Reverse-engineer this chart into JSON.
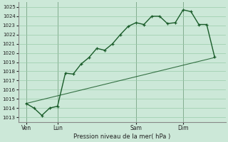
{
  "xlabel": "Pression niveau de la mer( hPa )",
  "ylim": [
    1012.5,
    1025.5
  ],
  "yticks": [
    1013,
    1014,
    1015,
    1016,
    1017,
    1018,
    1019,
    1020,
    1021,
    1022,
    1023,
    1024,
    1025
  ],
  "bg_color": "#cce8d8",
  "grid_color": "#99ccaa",
  "line_color": "#1a5c2a",
  "day_labels": [
    "Ven",
    "Lun",
    "Sam",
    "Dim"
  ],
  "day_positions": [
    0.5,
    2.5,
    7.5,
    10.5
  ],
  "day_vlines": [
    0.5,
    2.5,
    7.5,
    10.5
  ],
  "line1_x": [
    0.5,
    1.0,
    1.5,
    2.0,
    2.5,
    3.0,
    3.5,
    4.0,
    4.5,
    5.0,
    5.5,
    6.0,
    6.5,
    7.0,
    7.5,
    8.0,
    8.5,
    9.0,
    9.5,
    10.0,
    10.5,
    11.0,
    11.5,
    12.0,
    12.5
  ],
  "line1_y": [
    1014.5,
    1014.0,
    1013.2,
    1014.0,
    1014.2,
    1017.8,
    1017.7,
    1018.8,
    1019.5,
    1020.5,
    1020.3,
    1021.0,
    1022.0,
    1022.9,
    1023.3,
    1023.1,
    1024.0,
    1024.0,
    1023.2,
    1023.3,
    1024.7,
    1024.5,
    1023.1,
    1023.1,
    1019.6
  ],
  "line2_x": [
    0.5,
    12.5
  ],
  "line2_y": [
    1014.5,
    1019.5
  ],
  "xlim": [
    0.0,
    13.2
  ],
  "figwidth": 3.2,
  "figheight": 2.0,
  "dpi": 100
}
